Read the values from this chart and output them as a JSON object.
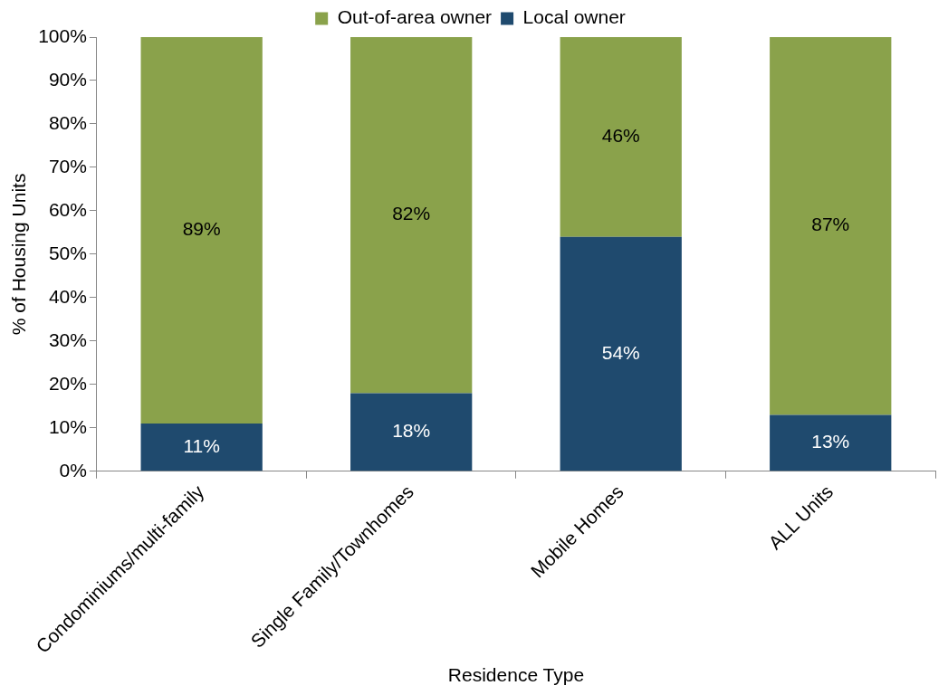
{
  "chart_data": {
    "type": "bar",
    "stacked": true,
    "xlabel": "Residence Type",
    "ylabel": "% of Housing Units",
    "categories": [
      "Condominiums/multi-family",
      "Single Family/Townhomes",
      "Mobile Homes",
      "ALL Units"
    ],
    "series": [
      {
        "name": "Local owner",
        "color": "#1f4a6e",
        "values": [
          11,
          18,
          54,
          13
        ],
        "value_labels": [
          "11%",
          "18%",
          "54%",
          "13%"
        ]
      },
      {
        "name": "Out-of-area owner",
        "color": "#8aa24b",
        "values": [
          89,
          82,
          46,
          87
        ],
        "value_labels": [
          "89%",
          "82%",
          "46%",
          "87%"
        ]
      }
    ],
    "ylim": [
      0,
      100
    ],
    "yticks": [
      {
        "value": 0,
        "label": "0%"
      },
      {
        "value": 10,
        "label": "10%"
      },
      {
        "value": 20,
        "label": "20%"
      },
      {
        "value": 30,
        "label": "30%"
      },
      {
        "value": 40,
        "label": "40%"
      },
      {
        "value": 50,
        "label": "50%"
      },
      {
        "value": 60,
        "label": "60%"
      },
      {
        "value": 70,
        "label": "70%"
      },
      {
        "value": 80,
        "label": "80%"
      },
      {
        "value": 90,
        "label": "90%"
      },
      {
        "value": 100,
        "label": "100%"
      }
    ],
    "grid": false,
    "legend": "top"
  }
}
